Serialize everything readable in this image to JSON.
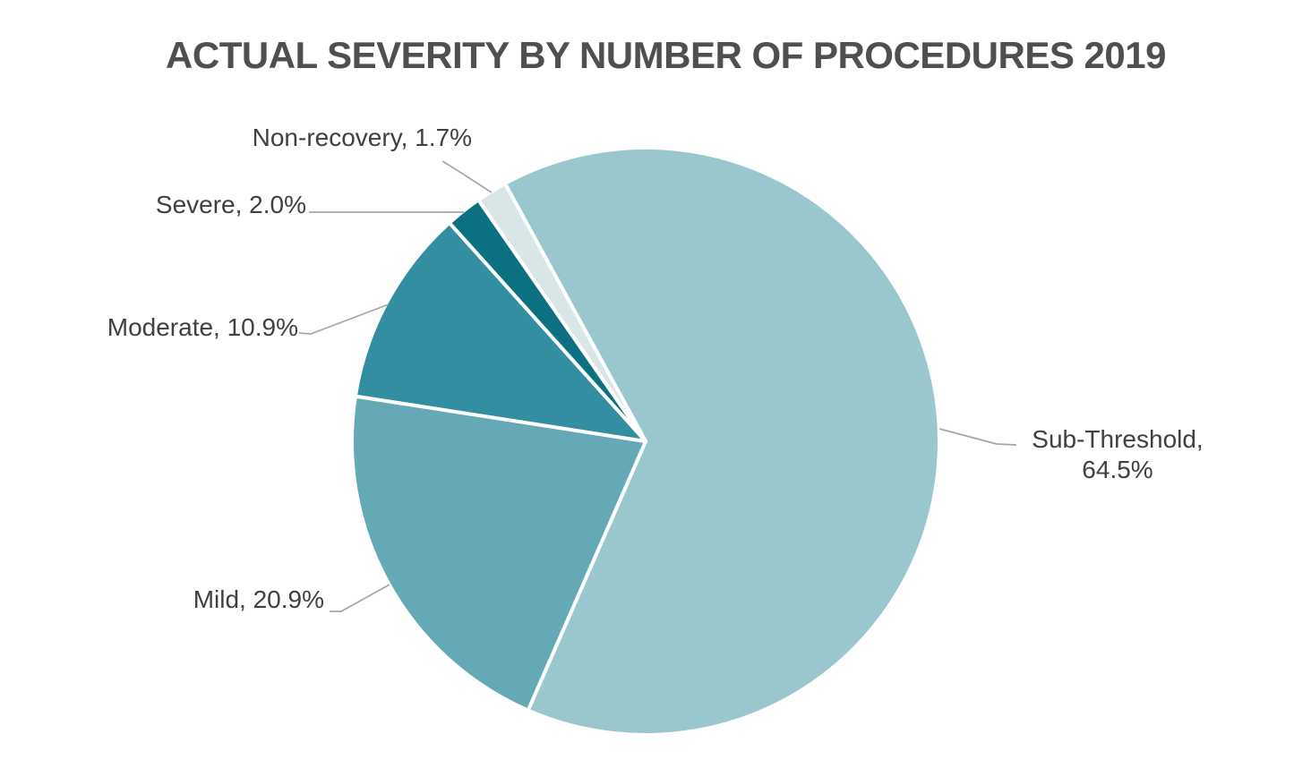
{
  "chart_data": {
    "type": "pie",
    "title": "ACTUAL SEVERITY BY NUMBER OF PROCEDURES 2019",
    "unit": "%",
    "direction": "clockwise",
    "start_angle_deg": -28.6,
    "legend": "none",
    "data_labels": "category name and percentage, placed outside with gray leader lines",
    "categories": [
      "Sub-Threshold",
      "Mild",
      "Moderate",
      "Severe",
      "Non-recovery"
    ],
    "values": [
      64.5,
      20.9,
      10.9,
      2.0,
      1.7
    ],
    "slices": [
      {
        "slug": "sub-threshold",
        "category": "Sub-Threshold",
        "value": 64.5,
        "label": "Sub-Threshold, 64.5%",
        "color": "#9AC6CE"
      },
      {
        "slug": "mild",
        "category": "Mild",
        "value": 20.9,
        "label": "Mild, 20.9%",
        "color": "#65A9B7"
      },
      {
        "slug": "moderate",
        "category": "Moderate",
        "value": 10.9,
        "label": "Moderate, 10.9%",
        "color": "#348EA1"
      },
      {
        "slug": "severe",
        "category": "Severe",
        "value": 2.0,
        "label": "Severe, 2.0%",
        "color": "#0D7081"
      },
      {
        "slug": "non-recovery",
        "category": "Non-recovery",
        "value": 1.7,
        "label": "Non-recovery, 1.7%",
        "color": "#D8E6E8"
      }
    ],
    "colors": {
      "background": "#FFFFFF",
      "slice_border": "#FFFFFF",
      "leader_line": "#A6A6A6",
      "title_text": "#4F4F4F",
      "label_text": "#404040"
    }
  }
}
